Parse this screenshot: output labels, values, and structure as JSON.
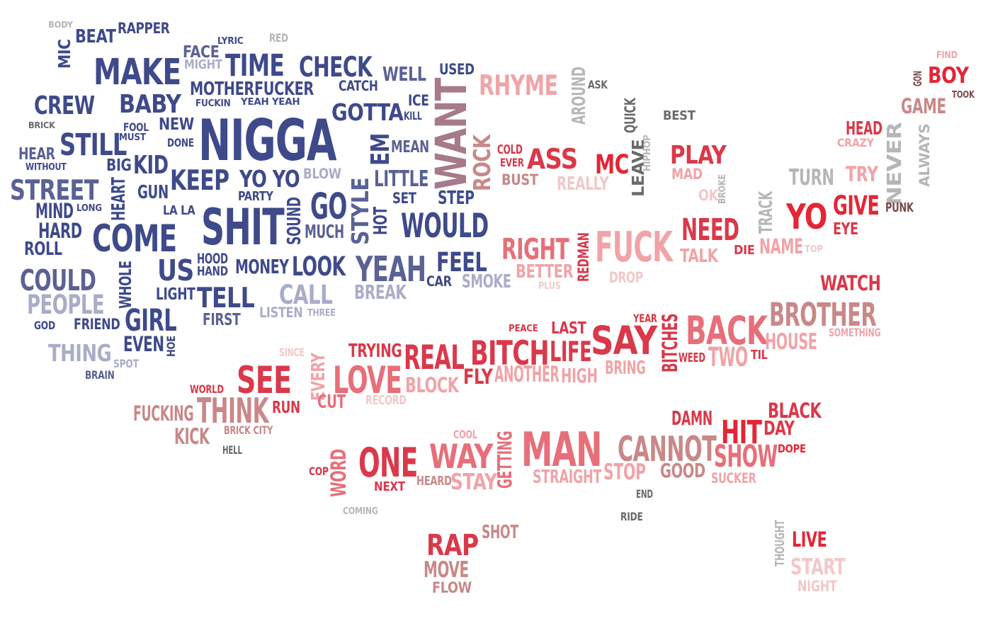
{
  "palette": {
    "navy": "#3e4a8a",
    "slate": "#5a6294",
    "lavender": "#a9adc8",
    "grey": "#b6b6b6",
    "darkgrey": "#6b6b6b",
    "mauve": "#a67a8a",
    "rose": "#e66f7a",
    "pink": "#f0a4a8",
    "red": "#e32636",
    "crimson": "#d9394a",
    "brown": "#7a4a4a",
    "dusty": "#c98888",
    "pale": "#f2c8c8"
  },
  "words": [
    {
      "text": "BODY",
      "c": "grey"
    },
    {
      "text": "BEAT",
      "c": "navy"
    },
    {
      "text": "RAPPER",
      "c": "navy"
    },
    {
      "text": "MIC",
      "c": "navy"
    },
    {
      "text": "LYRIC",
      "c": "navy"
    },
    {
      "text": "RED",
      "c": "grey"
    },
    {
      "text": "FACE",
      "c": "slate"
    },
    {
      "text": "MIGHT",
      "c": "lavender"
    },
    {
      "text": "TIME",
      "c": "navy"
    },
    {
      "text": "CHECK",
      "c": "navy"
    },
    {
      "text": "USED",
      "c": "navy"
    },
    {
      "text": "MAKE",
      "c": "navy"
    },
    {
      "text": "MOTHERFUCKER",
      "c": "navy"
    },
    {
      "text": "CATCH",
      "c": "navy"
    },
    {
      "text": "WELL",
      "c": "slate"
    },
    {
      "text": "RHYME",
      "c": "pink"
    },
    {
      "text": "AROUND",
      "c": "grey"
    },
    {
      "text": "ASK",
      "c": "darkgrey"
    },
    {
      "text": "FIND",
      "c": "pink"
    },
    {
      "text": "GON",
      "c": "brown"
    },
    {
      "text": "BOY",
      "c": "red"
    },
    {
      "text": "TOOK",
      "c": "brown"
    },
    {
      "text": "CREW",
      "c": "navy"
    },
    {
      "text": "BABY",
      "c": "navy"
    },
    {
      "text": "FUCKIN",
      "c": "navy"
    },
    {
      "text": "YEAH YEAH",
      "c": "navy"
    },
    {
      "text": "GOTTA",
      "c": "navy"
    },
    {
      "text": "ICE",
      "c": "navy"
    },
    {
      "text": "KILL",
      "c": "navy"
    },
    {
      "text": "WANT",
      "c": "mauve"
    },
    {
      "text": "QUICK",
      "c": "darkgrey"
    },
    {
      "text": "BEST",
      "c": "darkgrey"
    },
    {
      "text": "GAME",
      "c": "dusty"
    },
    {
      "text": "BRICK",
      "c": "darkgrey"
    },
    {
      "text": "FOOL",
      "c": "navy"
    },
    {
      "text": "MUST",
      "c": "navy"
    },
    {
      "text": "NEW",
      "c": "navy"
    },
    {
      "text": "NIGGA",
      "c": "navy"
    },
    {
      "text": "EM",
      "c": "navy"
    },
    {
      "text": "MEAN",
      "c": "slate"
    },
    {
      "text": "ROCK",
      "c": "dusty"
    },
    {
      "text": "COLD",
      "c": "crimson"
    },
    {
      "text": "EVER",
      "c": "crimson"
    },
    {
      "text": "ASS",
      "c": "crimson"
    },
    {
      "text": "MC",
      "c": "red"
    },
    {
      "text": "LEAVE",
      "c": "darkgrey"
    },
    {
      "text": "HIPHOP",
      "c": "grey"
    },
    {
      "text": "PLAY",
      "c": "crimson"
    },
    {
      "text": "HEAD",
      "c": "crimson"
    },
    {
      "text": "CRAZY",
      "c": "pink"
    },
    {
      "text": "NEVER",
      "c": "grey"
    },
    {
      "text": "ALWAYS",
      "c": "grey"
    },
    {
      "text": "STILL",
      "c": "navy"
    },
    {
      "text": "HEAR",
      "c": "slate"
    },
    {
      "text": "WITHOUT",
      "c": "navy"
    },
    {
      "text": "DONE",
      "c": "navy"
    },
    {
      "text": "BIG",
      "c": "navy"
    },
    {
      "text": "KID",
      "c": "navy"
    },
    {
      "text": "KEEP",
      "c": "navy"
    },
    {
      "text": "YO YO",
      "c": "navy"
    },
    {
      "text": "BLOW",
      "c": "lavender"
    },
    {
      "text": "LITTLE",
      "c": "slate"
    },
    {
      "text": "BUST",
      "c": "dusty"
    },
    {
      "text": "REALLY",
      "c": "pale"
    },
    {
      "text": "MAD",
      "c": "pink"
    },
    {
      "text": "TURN",
      "c": "grey"
    },
    {
      "text": "TRY",
      "c": "pink"
    },
    {
      "text": "STREET",
      "c": "slate"
    },
    {
      "text": "HEART",
      "c": "navy"
    },
    {
      "text": "GUN",
      "c": "navy"
    },
    {
      "text": "PARTY",
      "c": "navy"
    },
    {
      "text": "STYLE",
      "c": "slate"
    },
    {
      "text": "SET",
      "c": "navy"
    },
    {
      "text": "STEP",
      "c": "navy"
    },
    {
      "text": "OK",
      "c": "pale"
    },
    {
      "text": "BROKE",
      "c": "grey"
    },
    {
      "text": "TRACK",
      "c": "grey"
    },
    {
      "text": "YO",
      "c": "red"
    },
    {
      "text": "GIVE",
      "c": "red"
    },
    {
      "text": "PUNK",
      "c": "brown"
    },
    {
      "text": "MIND",
      "c": "navy"
    },
    {
      "text": "LONG",
      "c": "navy"
    },
    {
      "text": "LA LA",
      "c": "navy"
    },
    {
      "text": "SOUND",
      "c": "navy"
    },
    {
      "text": "GO",
      "c": "navy"
    },
    {
      "text": "HOT",
      "c": "navy"
    },
    {
      "text": "EYE",
      "c": "crimson"
    },
    {
      "text": "HARD",
      "c": "navy"
    },
    {
      "text": "SHIT",
      "c": "navy"
    },
    {
      "text": "MUCH",
      "c": "slate"
    },
    {
      "text": "WOULD",
      "c": "navy"
    },
    {
      "text": "NEED",
      "c": "crimson"
    },
    {
      "text": "ROLL",
      "c": "navy"
    },
    {
      "text": "COME",
      "c": "navy"
    },
    {
      "text": "RIGHT",
      "c": "rose"
    },
    {
      "text": "REDMAN",
      "c": "crimson"
    },
    {
      "text": "FUCK",
      "c": "pink"
    },
    {
      "text": "DIE",
      "c": "crimson"
    },
    {
      "text": "NAME",
      "c": "pink"
    },
    {
      "text": "TOP",
      "c": "pale"
    },
    {
      "text": "WHOLE",
      "c": "navy"
    },
    {
      "text": "US",
      "c": "navy"
    },
    {
      "text": "HOOD",
      "c": "navy"
    },
    {
      "text": "HAND",
      "c": "navy"
    },
    {
      "text": "MONEY",
      "c": "navy"
    },
    {
      "text": "LOOK",
      "c": "navy"
    },
    {
      "text": "YEAH",
      "c": "slate"
    },
    {
      "text": "FEEL",
      "c": "navy"
    },
    {
      "text": "TALK",
      "c": "pink"
    },
    {
      "text": "COULD",
      "c": "slate"
    },
    {
      "text": "BETTER",
      "c": "pink"
    },
    {
      "text": "DROP",
      "c": "pale"
    },
    {
      "text": "LIGHT",
      "c": "navy"
    },
    {
      "text": "CAR",
      "c": "navy"
    },
    {
      "text": "SMOKE",
      "c": "lavender"
    },
    {
      "text": "PLUS",
      "c": "pale"
    },
    {
      "text": "PEOPLE",
      "c": "lavender"
    },
    {
      "text": "CALL",
      "c": "lavender"
    },
    {
      "text": "BREAK",
      "c": "lavender"
    },
    {
      "text": "WATCH",
      "c": "crimson"
    },
    {
      "text": "TELL",
      "c": "navy"
    },
    {
      "text": "BROTHER",
      "c": "dusty"
    },
    {
      "text": "GOD",
      "c": "navy"
    },
    {
      "text": "FRIEND",
      "c": "navy"
    },
    {
      "text": "GIRL",
      "c": "navy"
    },
    {
      "text": "FIRST",
      "c": "slate"
    },
    {
      "text": "LISTEN",
      "c": "lavender"
    },
    {
      "text": "THREE",
      "c": "lavender"
    },
    {
      "text": "YEAR",
      "c": "crimson"
    },
    {
      "text": "PEACE",
      "c": "crimson"
    },
    {
      "text": "LAST",
      "c": "crimson"
    },
    {
      "text": "BITCHES",
      "c": "crimson"
    },
    {
      "text": "BACK",
      "c": "rose"
    },
    {
      "text": "SOMETHING",
      "c": "pink"
    },
    {
      "text": "EVEN",
      "c": "navy"
    },
    {
      "text": "HOE",
      "c": "navy"
    },
    {
      "text": "SAY",
      "c": "crimson"
    },
    {
      "text": "HOUSE",
      "c": "pink"
    },
    {
      "text": "THING",
      "c": "lavender"
    },
    {
      "text": "SPOT",
      "c": "lavender"
    },
    {
      "text": "SINCE",
      "c": "pale"
    },
    {
      "text": "TRYING",
      "c": "crimson"
    },
    {
      "text": "REAL",
      "c": "crimson"
    },
    {
      "text": "BITCH",
      "c": "crimson"
    },
    {
      "text": "LIFE",
      "c": "crimson"
    },
    {
      "text": "WEED",
      "c": "crimson"
    },
    {
      "text": "TWO",
      "c": "pink"
    },
    {
      "text": "TIL",
      "c": "crimson"
    },
    {
      "text": "BRAIN",
      "c": "slate"
    },
    {
      "text": "EVERY",
      "c": "pink"
    },
    {
      "text": "LOVE",
      "c": "rose"
    },
    {
      "text": "FLY",
      "c": "crimson"
    },
    {
      "text": "ANOTHER",
      "c": "pink"
    },
    {
      "text": "HIGH",
      "c": "pink"
    },
    {
      "text": "BRING",
      "c": "pink"
    },
    {
      "text": "SEE",
      "c": "crimson"
    },
    {
      "text": "BLOCK",
      "c": "pink"
    },
    {
      "text": "WORLD",
      "c": "crimson"
    },
    {
      "text": "RECORD",
      "c": "pale"
    },
    {
      "text": "FUCKING",
      "c": "dusty"
    },
    {
      "text": "THINK",
      "c": "dusty"
    },
    {
      "text": "RUN",
      "c": "crimson"
    },
    {
      "text": "CUT",
      "c": "rose"
    },
    {
      "text": "KICK",
      "c": "dusty"
    },
    {
      "text": "BRICK CITY",
      "c": "dusty"
    },
    {
      "text": "DAMN",
      "c": "crimson"
    },
    {
      "text": "BLACK",
      "c": "crimson"
    },
    {
      "text": "HIT",
      "c": "red"
    },
    {
      "text": "DAY",
      "c": "crimson"
    },
    {
      "text": "HELL",
      "c": "darkgrey"
    },
    {
      "text": "COOL",
      "c": "pink"
    },
    {
      "text": "MAN",
      "c": "rose"
    },
    {
      "text": "CANNOT",
      "c": "dusty"
    },
    {
      "text": "SHOW",
      "c": "rose"
    },
    {
      "text": "DOPE",
      "c": "red"
    },
    {
      "text": "ONE",
      "c": "crimson"
    },
    {
      "text": "WAY",
      "c": "rose"
    },
    {
      "text": "GETTING",
      "c": "rose"
    },
    {
      "text": "COP",
      "c": "crimson"
    },
    {
      "text": "WORD",
      "c": "rose"
    },
    {
      "text": "NEXT",
      "c": "crimson"
    },
    {
      "text": "HEARD",
      "c": "dusty"
    },
    {
      "text": "STAY",
      "c": "pink"
    },
    {
      "text": "STRAIGHT",
      "c": "pink"
    },
    {
      "text": "STOP",
      "c": "pink"
    },
    {
      "text": "GOOD",
      "c": "dusty"
    },
    {
      "text": "SUCKER",
      "c": "pink"
    },
    {
      "text": "END",
      "c": "darkgrey"
    },
    {
      "text": "COMING",
      "c": "grey"
    },
    {
      "text": "RIDE",
      "c": "darkgrey"
    },
    {
      "text": "RAP",
      "c": "crimson"
    },
    {
      "text": "SHOT",
      "c": "dusty"
    },
    {
      "text": "THOUGHT",
      "c": "grey"
    },
    {
      "text": "LIVE",
      "c": "red"
    },
    {
      "text": "MOVE",
      "c": "dusty"
    },
    {
      "text": "START",
      "c": "pale"
    },
    {
      "text": "FLOW",
      "c": "dusty"
    },
    {
      "text": "NIGHT",
      "c": "pale"
    }
  ]
}
